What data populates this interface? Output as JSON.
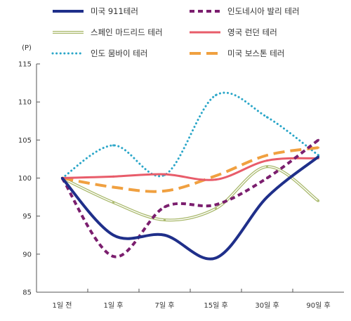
{
  "chart_data": {
    "type": "line",
    "y_unit": "(P)",
    "ylim": [
      85,
      115
    ],
    "yticks": [
      85,
      90,
      95,
      100,
      105,
      110,
      115
    ],
    "categories": [
      "1일 전",
      "1일 후",
      "7일 후",
      "15일 후",
      "30일 후",
      "90일 후"
    ],
    "grid": false,
    "legend_position": "top",
    "series": [
      {
        "name": "미국 911테러",
        "color": "#1f2f8a",
        "dash": "solid",
        "values": [
          100,
          92.5,
          92.5,
          89.5,
          97.5,
          102.8
        ]
      },
      {
        "name": "인도네시아 발리 테러",
        "color": "#7b1e6e",
        "dash": "dashed-short",
        "values": [
          100,
          89.7,
          96.2,
          96.5,
          100.0,
          105.0
        ]
      },
      {
        "name": "스페인 마드리드 테러",
        "color": "#a8b86a",
        "dash": "double",
        "values": [
          100,
          96.8,
          94.5,
          96.0,
          101.5,
          97.0
        ]
      },
      {
        "name": "영국 런던 테러",
        "color": "#e85c6a",
        "dash": "solid",
        "values": [
          100,
          100.2,
          100.5,
          99.8,
          102.3,
          102.6
        ]
      },
      {
        "name": "인도 뭄바이 테러",
        "color": "#2aa6c8",
        "dash": "dotted",
        "values": [
          100,
          104.3,
          100.4,
          110.9,
          108.0,
          103.0
        ]
      },
      {
        "name": "미국 보스톤 테러",
        "color": "#f0a040",
        "dash": "dashed-long",
        "values": [
          100,
          98.8,
          98.3,
          100.3,
          103.0,
          104.0
        ]
      }
    ]
  }
}
